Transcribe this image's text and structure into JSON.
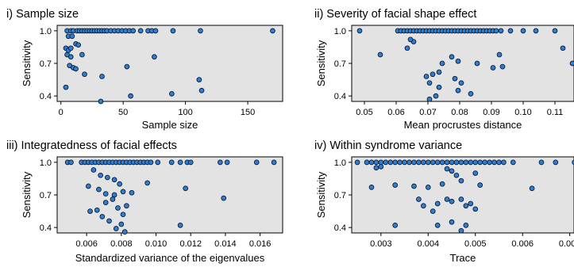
{
  "chart_data": [
    {
      "type": "scatter",
      "title": "i) Sample size",
      "xlabel": "Sample size",
      "ylabel": "Sensitivity",
      "xlim": [
        -3,
        178
      ],
      "ylim": [
        0.35,
        1.05
      ],
      "xticks": [
        0,
        50,
        100,
        150
      ],
      "xtick_labels": [
        "0",
        "50",
        "100",
        "150"
      ],
      "yticks": [
        0.4,
        0.7,
        1.0
      ],
      "ytick_labels": [
        "0.4",
        "0.7",
        "1.0"
      ],
      "grid": false,
      "points": [
        [
          5,
          1.0
        ],
        [
          8,
          1.0
        ],
        [
          10,
          1.0
        ],
        [
          13,
          1.0
        ],
        [
          15,
          1.0
        ],
        [
          17,
          1.0
        ],
        [
          19,
          1.0
        ],
        [
          21,
          1.0
        ],
        [
          23,
          1.0
        ],
        [
          25,
          1.0
        ],
        [
          27,
          1.0
        ],
        [
          29,
          1.0
        ],
        [
          31,
          1.0
        ],
        [
          33,
          1.0
        ],
        [
          35,
          1.0
        ],
        [
          37,
          1.0
        ],
        [
          40,
          1.0
        ],
        [
          43,
          1.0
        ],
        [
          46,
          1.0
        ],
        [
          49,
          1.0
        ],
        [
          52,
          1.0
        ],
        [
          55,
          1.0
        ],
        [
          58,
          1.0
        ],
        [
          64,
          1.0
        ],
        [
          70,
          1.0
        ],
        [
          73,
          1.0
        ],
        [
          76,
          1.0
        ],
        [
          90,
          1.0
        ],
        [
          112,
          1.0
        ],
        [
          170,
          1.0
        ],
        [
          6,
          0.95
        ],
        [
          9,
          0.95
        ],
        [
          4,
          0.84
        ],
        [
          6,
          0.82
        ],
        [
          8,
          0.84
        ],
        [
          5,
          0.78
        ],
        [
          8,
          0.76
        ],
        [
          12,
          0.88
        ],
        [
          14,
          0.87
        ],
        [
          17,
          0.78
        ],
        [
          7,
          0.68
        ],
        [
          10,
          0.66
        ],
        [
          12,
          0.65
        ],
        [
          19,
          0.6
        ],
        [
          4,
          0.48
        ],
        [
          33,
          0.58
        ],
        [
          53,
          0.67
        ],
        [
          75,
          0.76
        ],
        [
          32,
          0.35
        ],
        [
          56,
          0.4
        ],
        [
          89,
          0.42
        ],
        [
          111,
          0.55
        ],
        [
          113,
          0.45
        ]
      ]
    },
    {
      "type": "scatter",
      "title": "ii) Severity of facial shape effect",
      "xlabel": "Mean procrustes distance",
      "ylabel": "Sensitivity",
      "xlim": [
        0.046,
        0.116
      ],
      "ylim": [
        0.35,
        1.05
      ],
      "xticks": [
        0.05,
        0.06,
        0.07,
        0.08,
        0.09,
        0.1,
        0.11
      ],
      "xtick_labels": [
        "0.05",
        "0.06",
        "0.07",
        "0.08",
        "0.09",
        "0.10",
        "0.11"
      ],
      "yticks": [
        0.4,
        0.7,
        1.0
      ],
      "ytick_labels": [
        "0.4",
        "0.7",
        "1.0"
      ],
      "grid": false,
      "points": [
        [
          0.0485,
          1.0
        ],
        [
          0.0605,
          1.0
        ],
        [
          0.0615,
          1.0
        ],
        [
          0.0625,
          1.0
        ],
        [
          0.0635,
          1.0
        ],
        [
          0.0645,
          1.0
        ],
        [
          0.0655,
          1.0
        ],
        [
          0.0665,
          1.0
        ],
        [
          0.0675,
          1.0
        ],
        [
          0.0685,
          1.0
        ],
        [
          0.0695,
          1.0
        ],
        [
          0.0705,
          1.0
        ],
        [
          0.0715,
          1.0
        ],
        [
          0.0725,
          1.0
        ],
        [
          0.0735,
          1.0
        ],
        [
          0.0745,
          1.0
        ],
        [
          0.0755,
          1.0
        ],
        [
          0.0765,
          1.0
        ],
        [
          0.0775,
          1.0
        ],
        [
          0.0785,
          1.0
        ],
        [
          0.0795,
          1.0
        ],
        [
          0.0805,
          1.0
        ],
        [
          0.0815,
          1.0
        ],
        [
          0.0825,
          1.0
        ],
        [
          0.0835,
          1.0
        ],
        [
          0.0845,
          1.0
        ],
        [
          0.0855,
          1.0
        ],
        [
          0.0865,
          1.0
        ],
        [
          0.0875,
          1.0
        ],
        [
          0.0885,
          1.0
        ],
        [
          0.0895,
          1.0
        ],
        [
          0.0905,
          1.0
        ],
        [
          0.0915,
          1.0
        ],
        [
          0.093,
          1.0
        ],
        [
          0.096,
          1.0
        ],
        [
          0.1,
          1.0
        ],
        [
          0.104,
          1.0
        ],
        [
          0.11,
          1.0
        ],
        [
          0.055,
          0.78
        ],
        [
          0.0635,
          0.84
        ],
        [
          0.0655,
          0.9
        ],
        [
          0.0645,
          0.92
        ],
        [
          0.0735,
          0.62
        ],
        [
          0.0745,
          0.7
        ],
        [
          0.0775,
          0.76
        ],
        [
          0.0795,
          0.72
        ],
        [
          0.0695,
          0.58
        ],
        [
          0.0715,
          0.6
        ],
        [
          0.0705,
          0.52
        ],
        [
          0.0735,
          0.48
        ],
        [
          0.0725,
          0.4
        ],
        [
          0.0705,
          0.37
        ],
        [
          0.0785,
          0.56
        ],
        [
          0.0805,
          0.52
        ],
        [
          0.0795,
          0.45
        ],
        [
          0.0835,
          0.42
        ],
        [
          0.0855,
          0.7
        ],
        [
          0.0905,
          0.66
        ],
        [
          0.0935,
          0.67
        ],
        [
          0.0925,
          0.78
        ],
        [
          0.1125,
          0.84
        ],
        [
          0.1155,
          0.7
        ]
      ]
    },
    {
      "type": "scatter",
      "title": "iii) Integratedness of facial effects",
      "xlabel": "Standardized variance of the eigenvalues",
      "ylabel": "Sensitivity",
      "xlim": [
        0.0043,
        0.0173
      ],
      "ylim": [
        0.35,
        1.05
      ],
      "xticks": [
        0.006,
        0.008,
        0.01,
        0.012,
        0.014,
        0.016
      ],
      "xtick_labels": [
        "0.006",
        "0.008",
        "0.010",
        "0.012",
        "0.014",
        "0.016"
      ],
      "yticks": [
        0.4,
        0.7,
        1.0
      ],
      "ytick_labels": [
        "0.4",
        "0.7",
        "1.0"
      ],
      "grid": false,
      "points": [
        [
          0.0049,
          1.0
        ],
        [
          0.0051,
          1.0
        ],
        [
          0.0057,
          1.0
        ],
        [
          0.0059,
          1.0
        ],
        [
          0.0061,
          1.0
        ],
        [
          0.0063,
          1.0
        ],
        [
          0.0065,
          1.0
        ],
        [
          0.0067,
          1.0
        ],
        [
          0.0069,
          1.0
        ],
        [
          0.0071,
          1.0
        ],
        [
          0.0073,
          1.0
        ],
        [
          0.0075,
          1.0
        ],
        [
          0.0077,
          1.0
        ],
        [
          0.0079,
          1.0
        ],
        [
          0.0081,
          1.0
        ],
        [
          0.0083,
          1.0
        ],
        [
          0.0085,
          1.0
        ],
        [
          0.0087,
          1.0
        ],
        [
          0.0089,
          1.0
        ],
        [
          0.0091,
          1.0
        ],
        [
          0.0093,
          1.0
        ],
        [
          0.0095,
          1.0
        ],
        [
          0.0097,
          1.0
        ],
        [
          0.0101,
          1.0
        ],
        [
          0.0109,
          1.0
        ],
        [
          0.0114,
          1.0
        ],
        [
          0.0118,
          1.0
        ],
        [
          0.012,
          1.0
        ],
        [
          0.0137,
          1.0
        ],
        [
          0.0141,
          1.0
        ],
        [
          0.0158,
          1.0
        ],
        [
          0.0168,
          1.0
        ],
        [
          0.0064,
          0.93
        ],
        [
          0.0068,
          0.88
        ],
        [
          0.0072,
          0.86
        ],
        [
          0.0076,
          0.84
        ],
        [
          0.0061,
          0.78
        ],
        [
          0.0067,
          0.75
        ],
        [
          0.0071,
          0.71
        ],
        [
          0.0076,
          0.7
        ],
        [
          0.0079,
          0.8
        ],
        [
          0.0095,
          0.81
        ],
        [
          0.0081,
          0.73
        ],
        [
          0.0086,
          0.72
        ],
        [
          0.0062,
          0.55
        ],
        [
          0.0066,
          0.56
        ],
        [
          0.0071,
          0.63
        ],
        [
          0.0075,
          0.66
        ],
        [
          0.0078,
          0.58
        ],
        [
          0.0081,
          0.52
        ],
        [
          0.0083,
          0.6
        ],
        [
          0.0069,
          0.5
        ],
        [
          0.0073,
          0.46
        ],
        [
          0.008,
          0.43
        ],
        [
          0.0077,
          0.39
        ],
        [
          0.0082,
          0.36
        ],
        [
          0.0117,
          0.76
        ],
        [
          0.0139,
          0.67
        ],
        [
          0.0114,
          0.42
        ]
      ]
    },
    {
      "type": "scatter",
      "title": "iv) Within syndrome variance",
      "xlabel": "Trace",
      "ylabel": "Sensitivity",
      "xlim": [
        0.00238,
        0.00709
      ],
      "ylim": [
        0.35,
        1.05
      ],
      "xticks": [
        0.003,
        0.004,
        0.005,
        0.006,
        0.007
      ],
      "xtick_labels": [
        "0.003",
        "0.004",
        "0.005",
        "0.006",
        "0.007"
      ],
      "yticks": [
        0.4,
        0.7,
        1.0
      ],
      "ytick_labels": [
        "0.4",
        "0.7",
        "1.0"
      ],
      "grid": false,
      "points": [
        [
          0.0025,
          1.0
        ],
        [
          0.0027,
          1.0
        ],
        [
          0.0028,
          1.0
        ],
        [
          0.0029,
          1.0
        ],
        [
          0.003,
          1.0
        ],
        [
          0.0031,
          1.0
        ],
        [
          0.0032,
          1.0
        ],
        [
          0.0033,
          1.0
        ],
        [
          0.0034,
          1.0
        ],
        [
          0.0035,
          1.0
        ],
        [
          0.0036,
          1.0
        ],
        [
          0.0037,
          1.0
        ],
        [
          0.0038,
          1.0
        ],
        [
          0.0039,
          1.0
        ],
        [
          0.004,
          1.0
        ],
        [
          0.0041,
          1.0
        ],
        [
          0.0042,
          1.0
        ],
        [
          0.0043,
          1.0
        ],
        [
          0.0044,
          1.0
        ],
        [
          0.0045,
          1.0
        ],
        [
          0.0046,
          1.0
        ],
        [
          0.0047,
          1.0
        ],
        [
          0.0048,
          1.0
        ],
        [
          0.0049,
          1.0
        ],
        [
          0.005,
          1.0
        ],
        [
          0.0051,
          1.0
        ],
        [
          0.0052,
          1.0
        ],
        [
          0.0053,
          1.0
        ],
        [
          0.0054,
          1.0
        ],
        [
          0.0055,
          1.0
        ],
        [
          0.0056,
          1.0
        ],
        [
          0.0058,
          1.0
        ],
        [
          0.0064,
          1.0
        ],
        [
          0.0067,
          1.0
        ],
        [
          0.0071,
          1.0
        ],
        [
          0.0029,
          0.95
        ],
        [
          0.003,
          0.96
        ],
        [
          0.0044,
          0.94
        ],
        [
          0.0045,
          0.92
        ],
        [
          0.0046,
          0.88
        ],
        [
          0.005,
          0.9
        ],
        [
          0.0043,
          0.8
        ],
        [
          0.0047,
          0.83
        ],
        [
          0.0028,
          0.77
        ],
        [
          0.0033,
          0.79
        ],
        [
          0.0037,
          0.78
        ],
        [
          0.004,
          0.77
        ],
        [
          0.0051,
          0.79
        ],
        [
          0.0062,
          0.76
        ],
        [
          0.0038,
          0.66
        ],
        [
          0.0041,
          0.55
        ],
        [
          0.0042,
          0.62
        ],
        [
          0.0044,
          0.66
        ],
        [
          0.0039,
          0.6
        ],
        [
          0.0045,
          0.64
        ],
        [
          0.0047,
          0.66
        ],
        [
          0.0048,
          0.6
        ],
        [
          0.0049,
          0.62
        ],
        [
          0.005,
          0.57
        ],
        [
          0.0033,
          0.42
        ],
        [
          0.0042,
          0.42
        ],
        [
          0.0045,
          0.45
        ],
        [
          0.0047,
          0.37
        ],
        [
          0.0048,
          0.42
        ]
      ]
    }
  ]
}
